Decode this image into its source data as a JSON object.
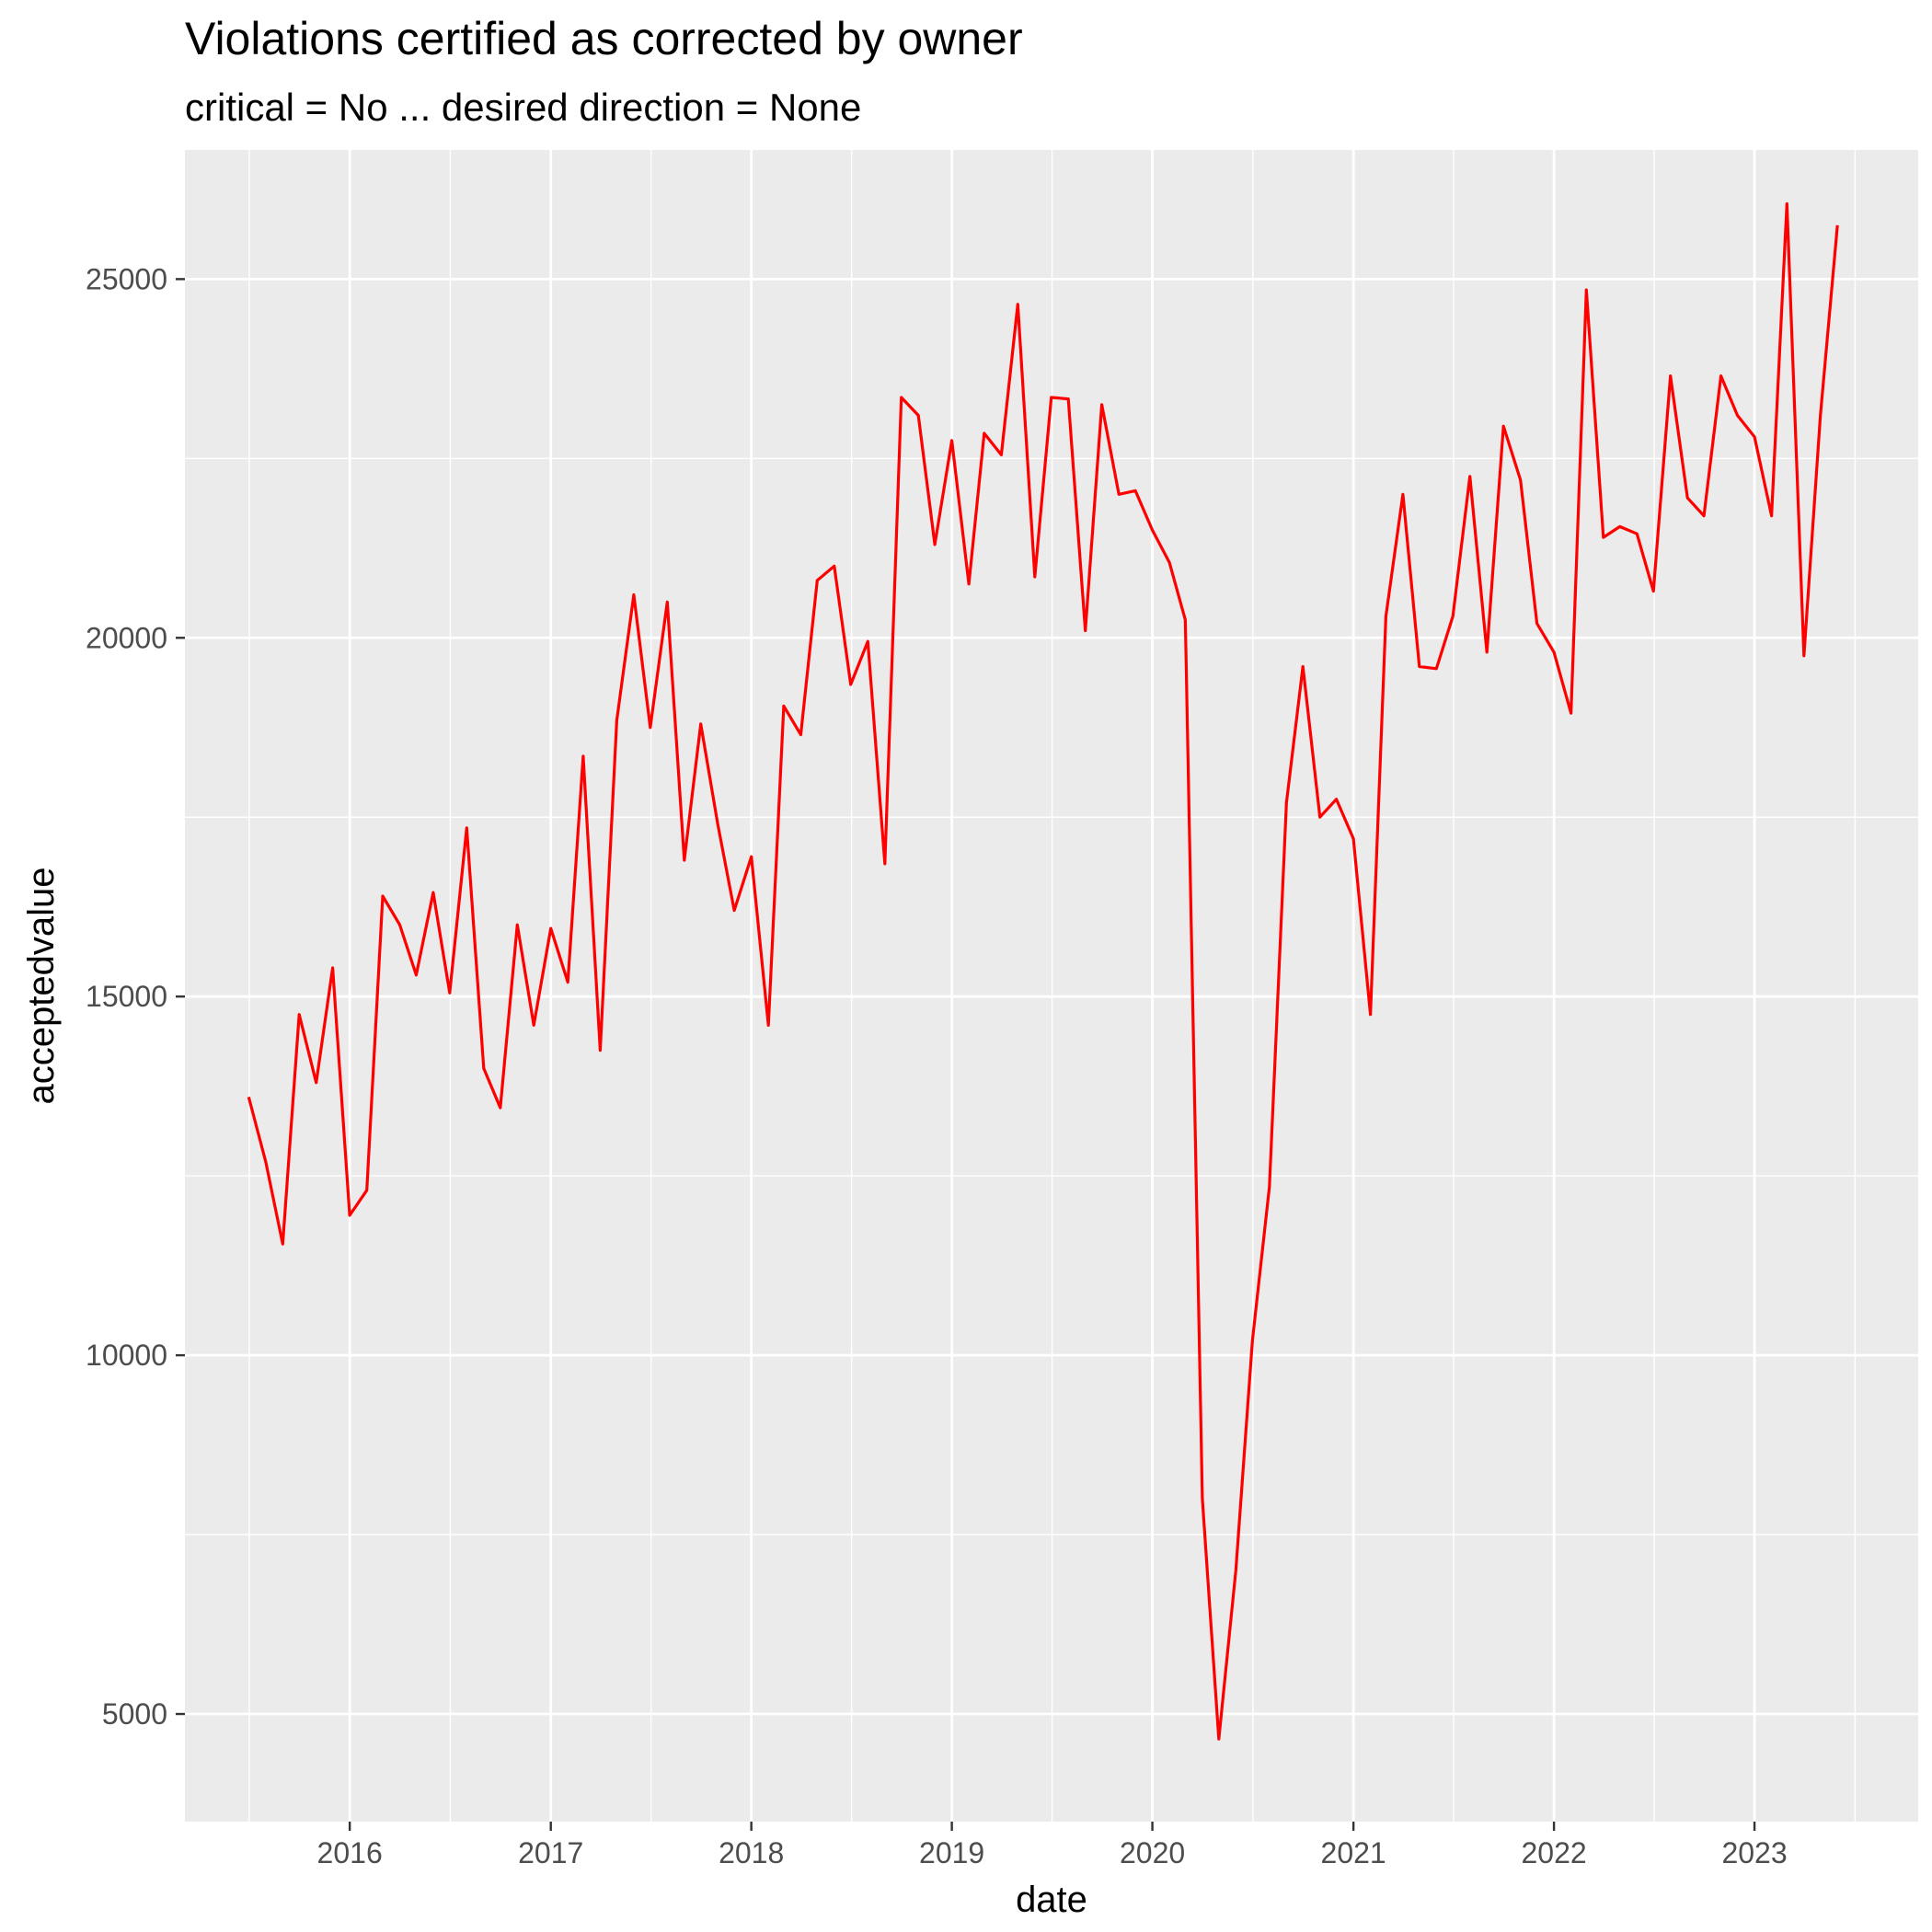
{
  "chart_data": {
    "type": "line",
    "title": "Violations certified as corrected by owner",
    "subtitle": "critical = No ... desired direction = None",
    "xlabel": "date",
    "ylabel": "acceptedvalue",
    "xlim": [
      "2015-03-07",
      "2023-10-26"
    ],
    "ylim": [
      3500,
      26800
    ],
    "x_ticks": [
      "2016-01-01",
      "2017-01-01",
      "2018-01-01",
      "2019-01-01",
      "2020-01-01",
      "2021-01-01",
      "2022-01-01",
      "2023-01-01"
    ],
    "x_tick_labels": [
      "2016",
      "2017",
      "2018",
      "2019",
      "2020",
      "2021",
      "2022",
      "2023"
    ],
    "y_ticks": [
      5000,
      10000,
      15000,
      20000,
      25000
    ],
    "y_tick_labels": [
      "5000",
      "10000",
      "15000",
      "20000",
      "25000"
    ],
    "grid": true,
    "series": [
      {
        "color": "#ff0000",
        "x": [
          "2015-07-01",
          "2015-08-01",
          "2015-09-01",
          "2015-10-01",
          "2015-11-01",
          "2015-12-01",
          "2016-01-01",
          "2016-02-01",
          "2016-03-01",
          "2016-04-01",
          "2016-05-01",
          "2016-06-01",
          "2016-07-01",
          "2016-08-01",
          "2016-09-01",
          "2016-10-01",
          "2016-11-01",
          "2016-12-01",
          "2017-01-01",
          "2017-02-01",
          "2017-03-01",
          "2017-04-01",
          "2017-05-01",
          "2017-06-01",
          "2017-07-01",
          "2017-08-01",
          "2017-09-01",
          "2017-10-01",
          "2017-11-01",
          "2017-12-01",
          "2018-01-01",
          "2018-02-01",
          "2018-03-01",
          "2018-04-01",
          "2018-05-01",
          "2018-06-01",
          "2018-07-01",
          "2018-08-01",
          "2018-09-01",
          "2018-10-01",
          "2018-11-01",
          "2018-12-01",
          "2019-01-01",
          "2019-02-01",
          "2019-03-01",
          "2019-04-01",
          "2019-05-01",
          "2019-06-01",
          "2019-07-01",
          "2019-08-01",
          "2019-09-01",
          "2019-10-01",
          "2019-11-01",
          "2019-12-01",
          "2020-01-01",
          "2020-02-01",
          "2020-03-01",
          "2020-04-01",
          "2020-05-01",
          "2020-06-01",
          "2020-07-01",
          "2020-08-01",
          "2020-09-01",
          "2020-10-01",
          "2020-11-01",
          "2020-12-01",
          "2021-01-01",
          "2021-02-01",
          "2021-03-01",
          "2021-04-01",
          "2021-05-01",
          "2021-06-01",
          "2021-07-01",
          "2021-08-01",
          "2021-09-01",
          "2021-10-01",
          "2021-11-01",
          "2021-12-01",
          "2022-01-01",
          "2022-02-01",
          "2022-03-01",
          "2022-04-01",
          "2022-05-01",
          "2022-06-01",
          "2022-07-01",
          "2022-08-01",
          "2022-09-01",
          "2022-10-01",
          "2022-11-01",
          "2022-12-01",
          "2023-01-01",
          "2023-02-01",
          "2023-03-01",
          "2023-04-01",
          "2023-05-01",
          "2023-06-01"
        ],
        "values": [
          13600,
          12700,
          11550,
          14750,
          13800,
          15400,
          11950,
          12300,
          16400,
          16000,
          15300,
          16450,
          15050,
          17350,
          14000,
          13450,
          16000,
          14600,
          15950,
          15200,
          18350,
          14250,
          18850,
          20600,
          18750,
          20500,
          16900,
          18800,
          17400,
          16200,
          16950,
          14600,
          19050,
          18650,
          20800,
          21000,
          19350,
          19950,
          16850,
          23350,
          23100,
          21300,
          22750,
          20750,
          22850,
          22550,
          24650,
          20850,
          23350,
          23330,
          20100,
          23250,
          22000,
          22050,
          21500,
          21050,
          20250,
          8000,
          4650,
          7000,
          10200,
          12350,
          17700,
          19600,
          17500,
          17750,
          17200,
          14750,
          20300,
          22000,
          19600,
          19570,
          20300,
          22250,
          19800,
          22950,
          22200,
          20200,
          19800,
          18950,
          24850,
          21400,
          21550,
          21450,
          20650,
          23650,
          21950,
          21700,
          23650,
          23100,
          22800,
          21700,
          26050,
          19750,
          23100,
          25750
        ]
      }
    ]
  }
}
